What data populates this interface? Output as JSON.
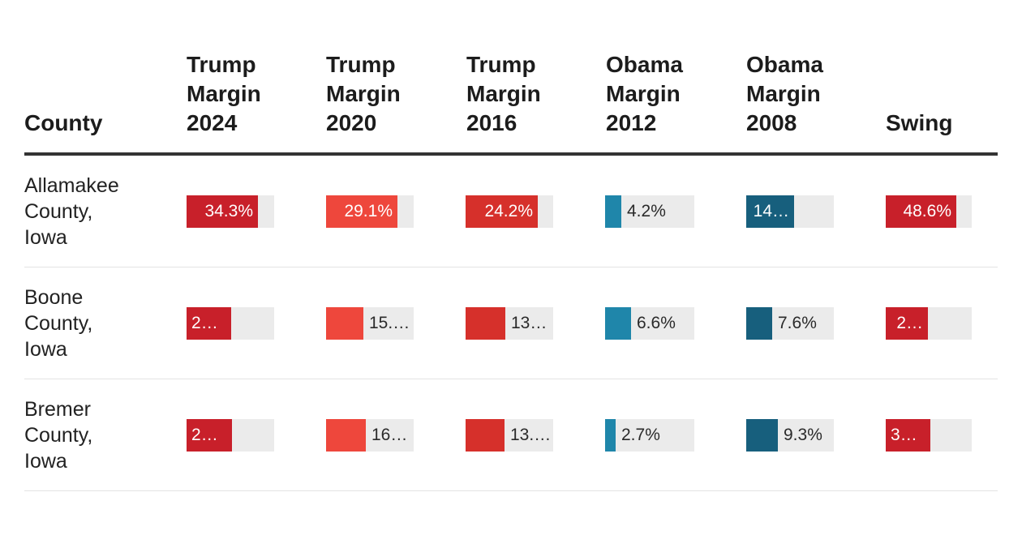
{
  "chart_data": {
    "type": "table",
    "columns": [
      "County",
      "Trump\nMargin\n2024",
      "Trump\nMargin\n2020",
      "Trump\nMargin\n2016",
      "Obama\nMargin\n2012",
      "Obama\nMargin\n2008",
      "Swing"
    ],
    "series": [
      {
        "key": "t2024",
        "color": "#c8202a",
        "max": 42.2
      },
      {
        "key": "t2020",
        "color": "#ee473c",
        "max": 35.6
      },
      {
        "key": "t2016",
        "color": "#d6302b",
        "max": 29.4
      },
      {
        "key": "o2012",
        "color": "#1f86aa",
        "max": 22.6
      },
      {
        "key": "o2008",
        "color": "#175f7d",
        "max": 26.0
      },
      {
        "key": "swing",
        "color": "#c8202a",
        "max": 59.4
      }
    ],
    "rows": [
      {
        "county": "Allamakee\nCounty,\nIowa",
        "values": [
          34.3,
          29.1,
          24.2,
          4.2,
          14.1,
          48.6
        ],
        "labels": [
          "34.3%",
          "29.1%",
          "24.2%",
          "4.2%",
          "14…",
          "48.6%"
        ]
      },
      {
        "county": "Boone\nCounty,\nIowa",
        "values": [
          21.3,
          15.1,
          13.3,
          6.6,
          7.6,
          29.3
        ],
        "labels": [
          "21…",
          "15.…",
          "13.…",
          "6.6%",
          "7.6%",
          "2…"
        ]
      },
      {
        "county": "Bremer\nCounty,\nIowa",
        "values": [
          22.0,
          16.3,
          13.2,
          2.7,
          9.3,
          31.0
        ],
        "labels": [
          "22…",
          "16.…",
          "13.…",
          "2.7%",
          "9.3%",
          "31…"
        ]
      }
    ]
  }
}
